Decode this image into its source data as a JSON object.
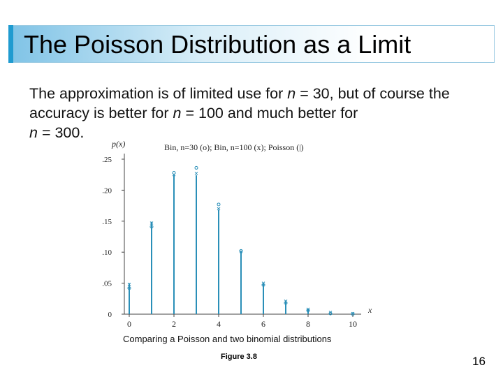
{
  "slide": {
    "title": "The Poisson Distribution as a Limit",
    "body": {
      "part1": "The approximation is of limited use for ",
      "n1": "n",
      "part2": " = 30, but of course the accuracy is better for ",
      "n2": "n",
      "part3": " = 100 and much better for ",
      "n3": "n",
      "part4": " = 300."
    },
    "caption": "Comparing a Poisson and two binomial distributions",
    "figure_label": "Figure 3.8",
    "page_number": "16"
  },
  "colors": {
    "accent": "#1f9bd0",
    "series": "#2a8fb8"
  },
  "chart_data": {
    "type": "bar",
    "title": "",
    "legend_text": "Bin, n=30 (o); Bin, n=100 (x); Poisson (|)",
    "xlabel": "x",
    "ylabel": "p(x)",
    "xlim": [
      0,
      10
    ],
    "ylim": [
      0,
      0.25
    ],
    "x_ticks": [
      0,
      2,
      4,
      6,
      8,
      10
    ],
    "y_ticks": [
      0,
      0.05,
      0.1,
      0.15,
      0.2,
      0.25
    ],
    "y_tick_labels": [
      "0",
      ".05",
      ".10",
      ".15",
      ".20",
      ".25"
    ],
    "x": [
      0,
      1,
      2,
      3,
      4,
      5,
      6,
      7,
      8,
      9,
      10
    ],
    "series": [
      {
        "name": "Poisson",
        "marker": "|",
        "values": [
          0.05,
          0.149,
          0.224,
          0.224,
          0.168,
          0.101,
          0.05,
          0.022,
          0.008,
          0.003,
          0.001
        ]
      },
      {
        "name": "Bin, n=30",
        "marker": "o",
        "values": [
          0.042,
          0.141,
          0.228,
          0.236,
          0.177,
          0.102,
          0.047,
          0.018,
          0.006,
          0.001,
          0.0003
        ]
      },
      {
        "name": "Bin, n=100",
        "marker": "x",
        "values": [
          0.048,
          0.147,
          0.225,
          0.227,
          0.17,
          0.101,
          0.05,
          0.021,
          0.008,
          0.003,
          0.001
        ]
      }
    ]
  }
}
